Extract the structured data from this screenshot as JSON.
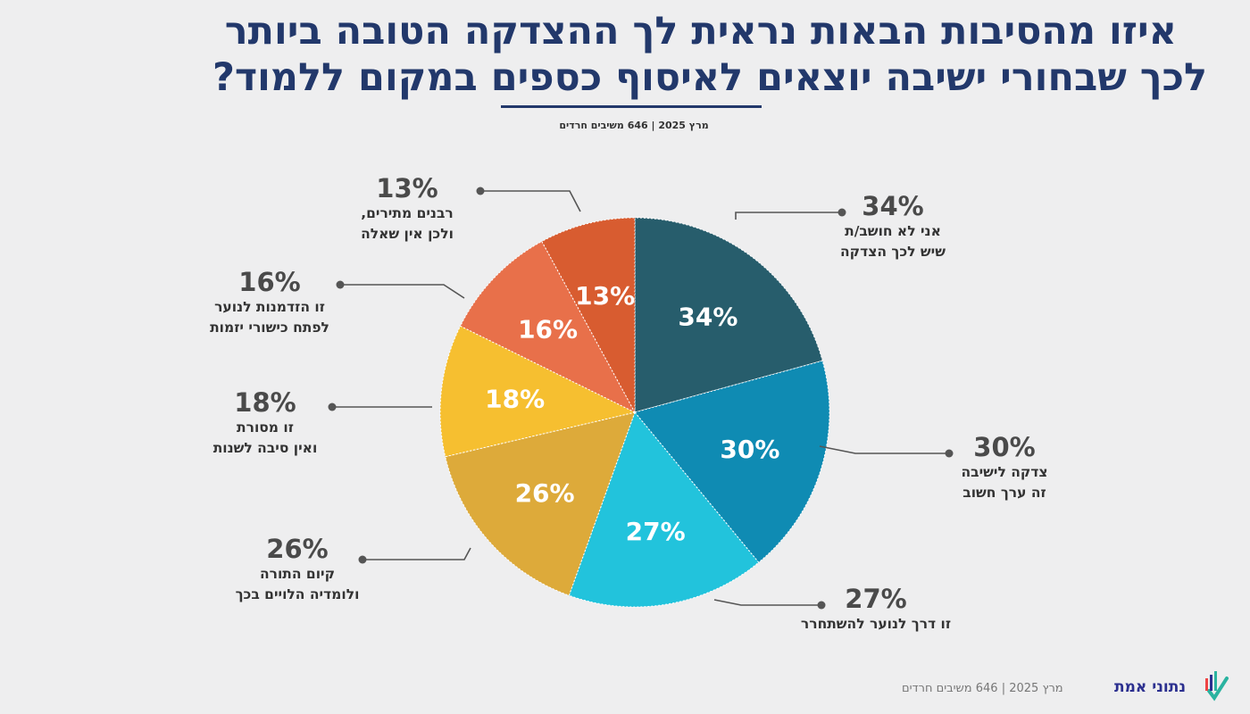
{
  "title": {
    "line1": "איזו מהסיבות הבאות נראית לך ההצדקה הטובה ביותר",
    "line2": "לכך שבחורי ישיבה יוצאים לאיסוף כספים במקום ללמוד?"
  },
  "subtitle": "מרץ 2025 | 646 משיבים חרדים",
  "footer": {
    "note": "מרץ 2025 | 646 משיבים חרדים",
    "brand": "נתוני אמת"
  },
  "chart_data": {
    "type": "pie",
    "start_angle_deg": 0,
    "direction": "clockwise",
    "slices": [
      {
        "value": 34,
        "data_label": "34%",
        "callout_pct": "34%",
        "label_lines": [
          "אני לא חושב/ת",
          "שיש לכך הצדקה"
        ],
        "color": "#275d6c"
      },
      {
        "value": 30,
        "data_label": "30%",
        "callout_pct": "30%",
        "label_lines": [
          "צדקה לישיבה",
          "זה ערך חשוב"
        ],
        "color": "#0f8bb3"
      },
      {
        "value": 27,
        "data_label": "27%",
        "callout_pct": "27%",
        "label_lines": [
          "זו דרך לנוער להשתחרר"
        ],
        "color": "#22c3dc"
      },
      {
        "value": 26,
        "data_label": "26%",
        "callout_pct": "26%",
        "label_lines": [
          "קיום התורה",
          "ולומדיה הלויים בכך"
        ],
        "color": "#ddaa3a"
      },
      {
        "value": 18,
        "data_label": "18%",
        "callout_pct": "18%",
        "label_lines": [
          "זו מסורת",
          "ואין סיבה לשנות"
        ],
        "color": "#f6bf30"
      },
      {
        "value": 16,
        "data_label": "16%",
        "callout_pct": "16%",
        "label_lines": [
          "זו הזדמנות לנוער",
          "לפתח כישורי יזמות"
        ],
        "color": "#e8704a"
      },
      {
        "value": 13,
        "data_label": "13%",
        "callout_pct": "13%",
        "label_lines": [
          "רבנים מתירים,",
          "ולכן אין שאלה"
        ],
        "color": "#d85c30"
      }
    ]
  }
}
